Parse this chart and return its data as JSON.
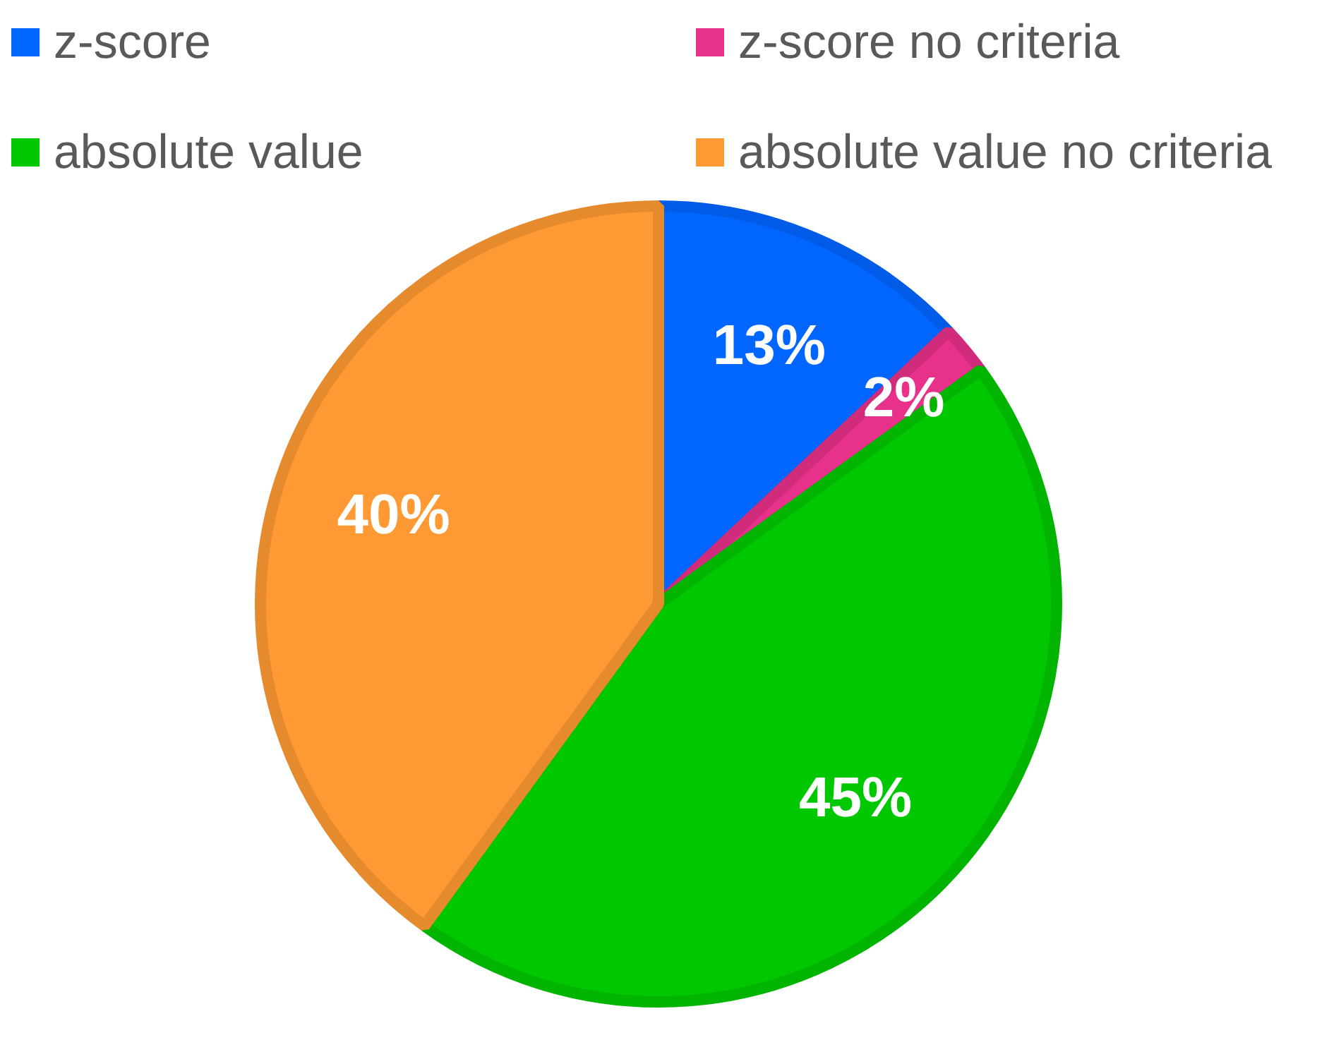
{
  "chart_data": {
    "type": "pie",
    "categories": [
      "z-score",
      "z-score no criteria",
      "absolute value",
      "absolute value no criteria"
    ],
    "values": [
      13,
      2,
      45,
      40
    ],
    "colors": [
      "#0066ff",
      "#e8318a",
      "#00c800",
      "#ff9933"
    ],
    "value_labels": [
      "13%",
      "2%",
      "45%",
      "40%"
    ],
    "legend": "top"
  }
}
